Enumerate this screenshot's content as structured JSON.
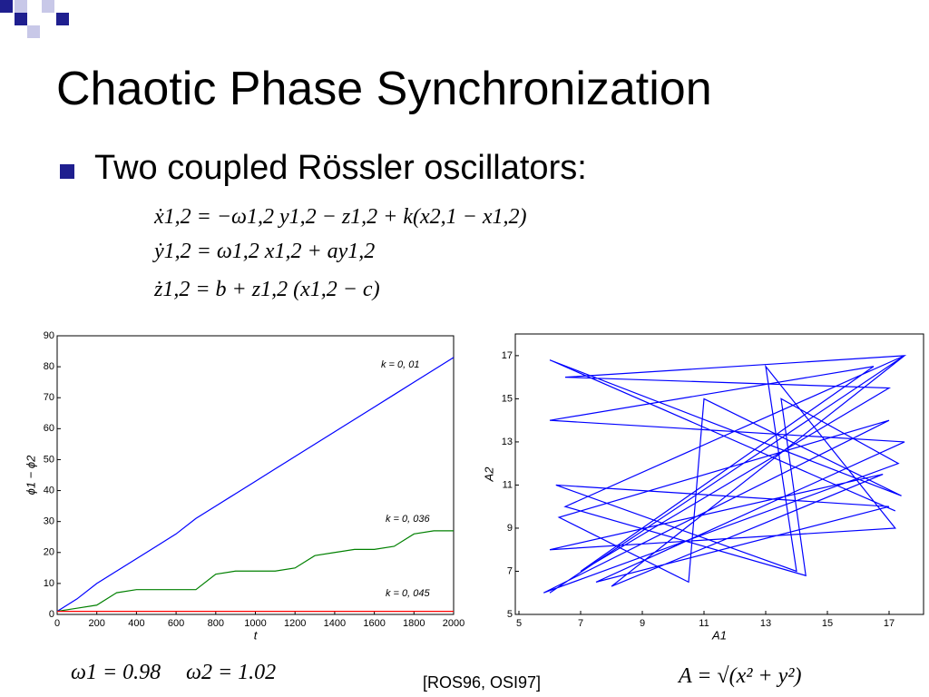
{
  "header": {
    "title": "Chaotic Phase Synchronization"
  },
  "bullet": "Two coupled Rössler oscillators:",
  "equations": [
    "ẋ1,2 = −ω1,2 y1,2 − z1,2 + k(x2,1 − x1,2)",
    "ẏ1,2 = ω1,2 x1,2 + ay1,2",
    "ż1,2 = b + z1,2 (x1,2 − c)"
  ],
  "chart_data": [
    {
      "type": "line",
      "xlabel": "t",
      "ylabel": "ϕ1 − ϕ2",
      "x": [
        0,
        100,
        200,
        300,
        400,
        500,
        600,
        700,
        800,
        900,
        1000,
        1100,
        1200,
        1300,
        1400,
        1500,
        1600,
        1700,
        1800,
        1900,
        2000
      ],
      "series": [
        {
          "color": "#0000ff",
          "values": [
            1,
            5,
            10,
            14,
            18,
            22,
            26,
            31,
            35,
            39,
            43,
            47,
            51,
            55,
            59,
            63,
            67,
            71,
            75,
            79,
            83
          ]
        },
        {
          "color": "#008000",
          "values": [
            1,
            2,
            3,
            7,
            8,
            8,
            8,
            8,
            13,
            14,
            14,
            14,
            15,
            19,
            20,
            21,
            21,
            22,
            26,
            27,
            27
          ]
        },
        {
          "color": "#ff0000",
          "values": [
            1,
            1,
            1,
            1,
            1,
            1,
            1,
            1,
            1,
            1,
            1,
            1,
            1,
            1,
            1,
            1,
            1,
            1,
            1,
            1,
            1
          ]
        }
      ],
      "annotations": [
        "k = 0, 01",
        "k = 0, 036",
        "k = 0, 045"
      ],
      "xlim": [
        0,
        2000
      ],
      "ylim": [
        0,
        90
      ],
      "xticks": [
        0,
        200,
        400,
        600,
        800,
        1000,
        1200,
        1400,
        1600,
        1800,
        2000
      ],
      "yticks": [
        0,
        10,
        20,
        30,
        40,
        50,
        60,
        70,
        80,
        90
      ]
    },
    {
      "type": "line",
      "xlabel": "A1",
      "ylabel": "A2",
      "x": [
        6,
        17.5,
        6.5,
        17,
        7,
        16.5,
        6,
        17.5,
        7.5,
        17,
        6.2,
        14,
        13,
        17.2,
        6,
        16.8,
        8,
        17.5,
        6.5,
        14.3,
        13.5,
        17.3,
        5.8,
        17,
        6.3,
        10.5,
        11,
        17.4,
        6,
        17.2
      ],
      "series": [
        {
          "color": "#0000ff",
          "values": [
            6,
            17,
            16,
            15.5,
            7,
            16.5,
            14,
            13,
            6.5,
            10,
            11,
            7,
            16.5,
            9,
            8,
            11.5,
            6.3,
            17,
            10,
            6.8,
            15,
            12,
            6,
            14,
            9.5,
            6.5,
            15,
            10.5,
            16.8,
            9.8
          ]
        }
      ],
      "xlim": [
        5,
        18
      ],
      "ylim": [
        5,
        17.5
      ],
      "xticks": [
        5,
        7,
        9,
        11,
        13,
        15,
        17
      ],
      "yticks": [
        5,
        7,
        9,
        11,
        13,
        15,
        17
      ]
    }
  ],
  "footer": {
    "omega1": "ω1 = 0.98",
    "omega2": "ω2 = 1.02",
    "citation": "[ROS96, OSI97]",
    "formula": "A = √(x² + y²)"
  }
}
